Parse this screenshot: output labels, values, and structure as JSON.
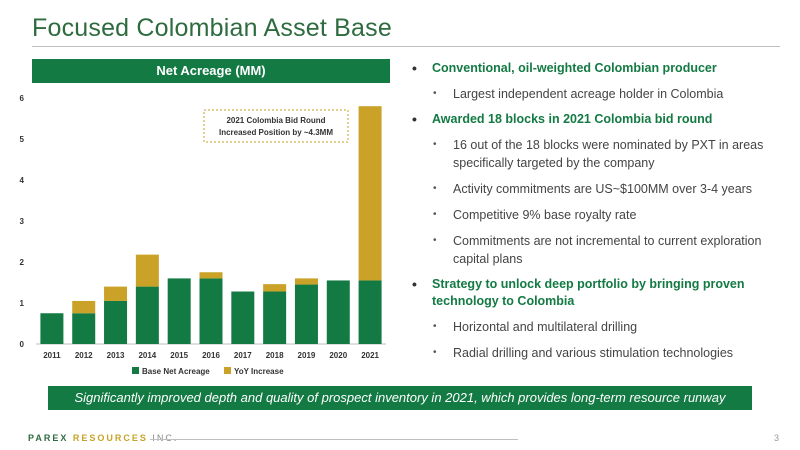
{
  "title": "Focused Colombian Asset Base",
  "chart_banner": "Net Acreage (MM)",
  "chart_data": {
    "type": "bar",
    "stacked": true,
    "categories": [
      "2011",
      "2012",
      "2013",
      "2014",
      "2015",
      "2016",
      "2017",
      "2018",
      "2019",
      "2020",
      "2021"
    ],
    "series": [
      {
        "name": "Base Net Acreage",
        "color": "#137a43",
        "values": [
          0.75,
          0.75,
          1.05,
          1.4,
          1.6,
          1.6,
          1.28,
          1.28,
          1.45,
          1.55,
          1.55
        ]
      },
      {
        "name": "YoY Increase",
        "color": "#c9a227",
        "values": [
          0,
          0.3,
          0.35,
          0.78,
          0,
          0.15,
          0,
          0.18,
          0.15,
          0,
          4.25
        ]
      }
    ],
    "ylim": [
      0,
      6
    ],
    "yticks": [
      "0",
      "1",
      "2",
      "3",
      "4",
      "5",
      "6"
    ],
    "legend_position": "bottom",
    "annotation": {
      "line1": "2021 Colombia Bid Round",
      "line2": "Increased Position by ~4.3MM"
    }
  },
  "bullets": [
    {
      "level": 1,
      "text": "Conventional, oil-weighted Colombian producer"
    },
    {
      "level": 2,
      "text": "Largest independent acreage holder in Colombia"
    },
    {
      "level": 1,
      "text": "Awarded 18 blocks in 2021 Colombia bid round"
    },
    {
      "level": 2,
      "text": "16 out of the 18 blocks were nominated by PXT in areas specifically targeted by the company"
    },
    {
      "level": 2,
      "text": "Activity commitments are US~$100MM over 3-4 years"
    },
    {
      "level": 2,
      "text": "Competitive 9% base royalty rate"
    },
    {
      "level": 2,
      "text": "Commitments are not incremental to current exploration capital plans"
    },
    {
      "level": 1,
      "text": "Strategy to unlock deep portfolio by bringing proven technology to Colombia"
    },
    {
      "level": 2,
      "text": "Horizontal and multilateral drilling"
    },
    {
      "level": 2,
      "text": "Radial drilling and various stimulation technologies"
    }
  ],
  "footer_banner": "Significantly improved depth and quality of prospect inventory in 2021, which provides long-term resource runway",
  "logo": {
    "part1": "PAREX",
    "part2": "RESOURCES",
    "part3": "INC."
  },
  "page_number": "3"
}
